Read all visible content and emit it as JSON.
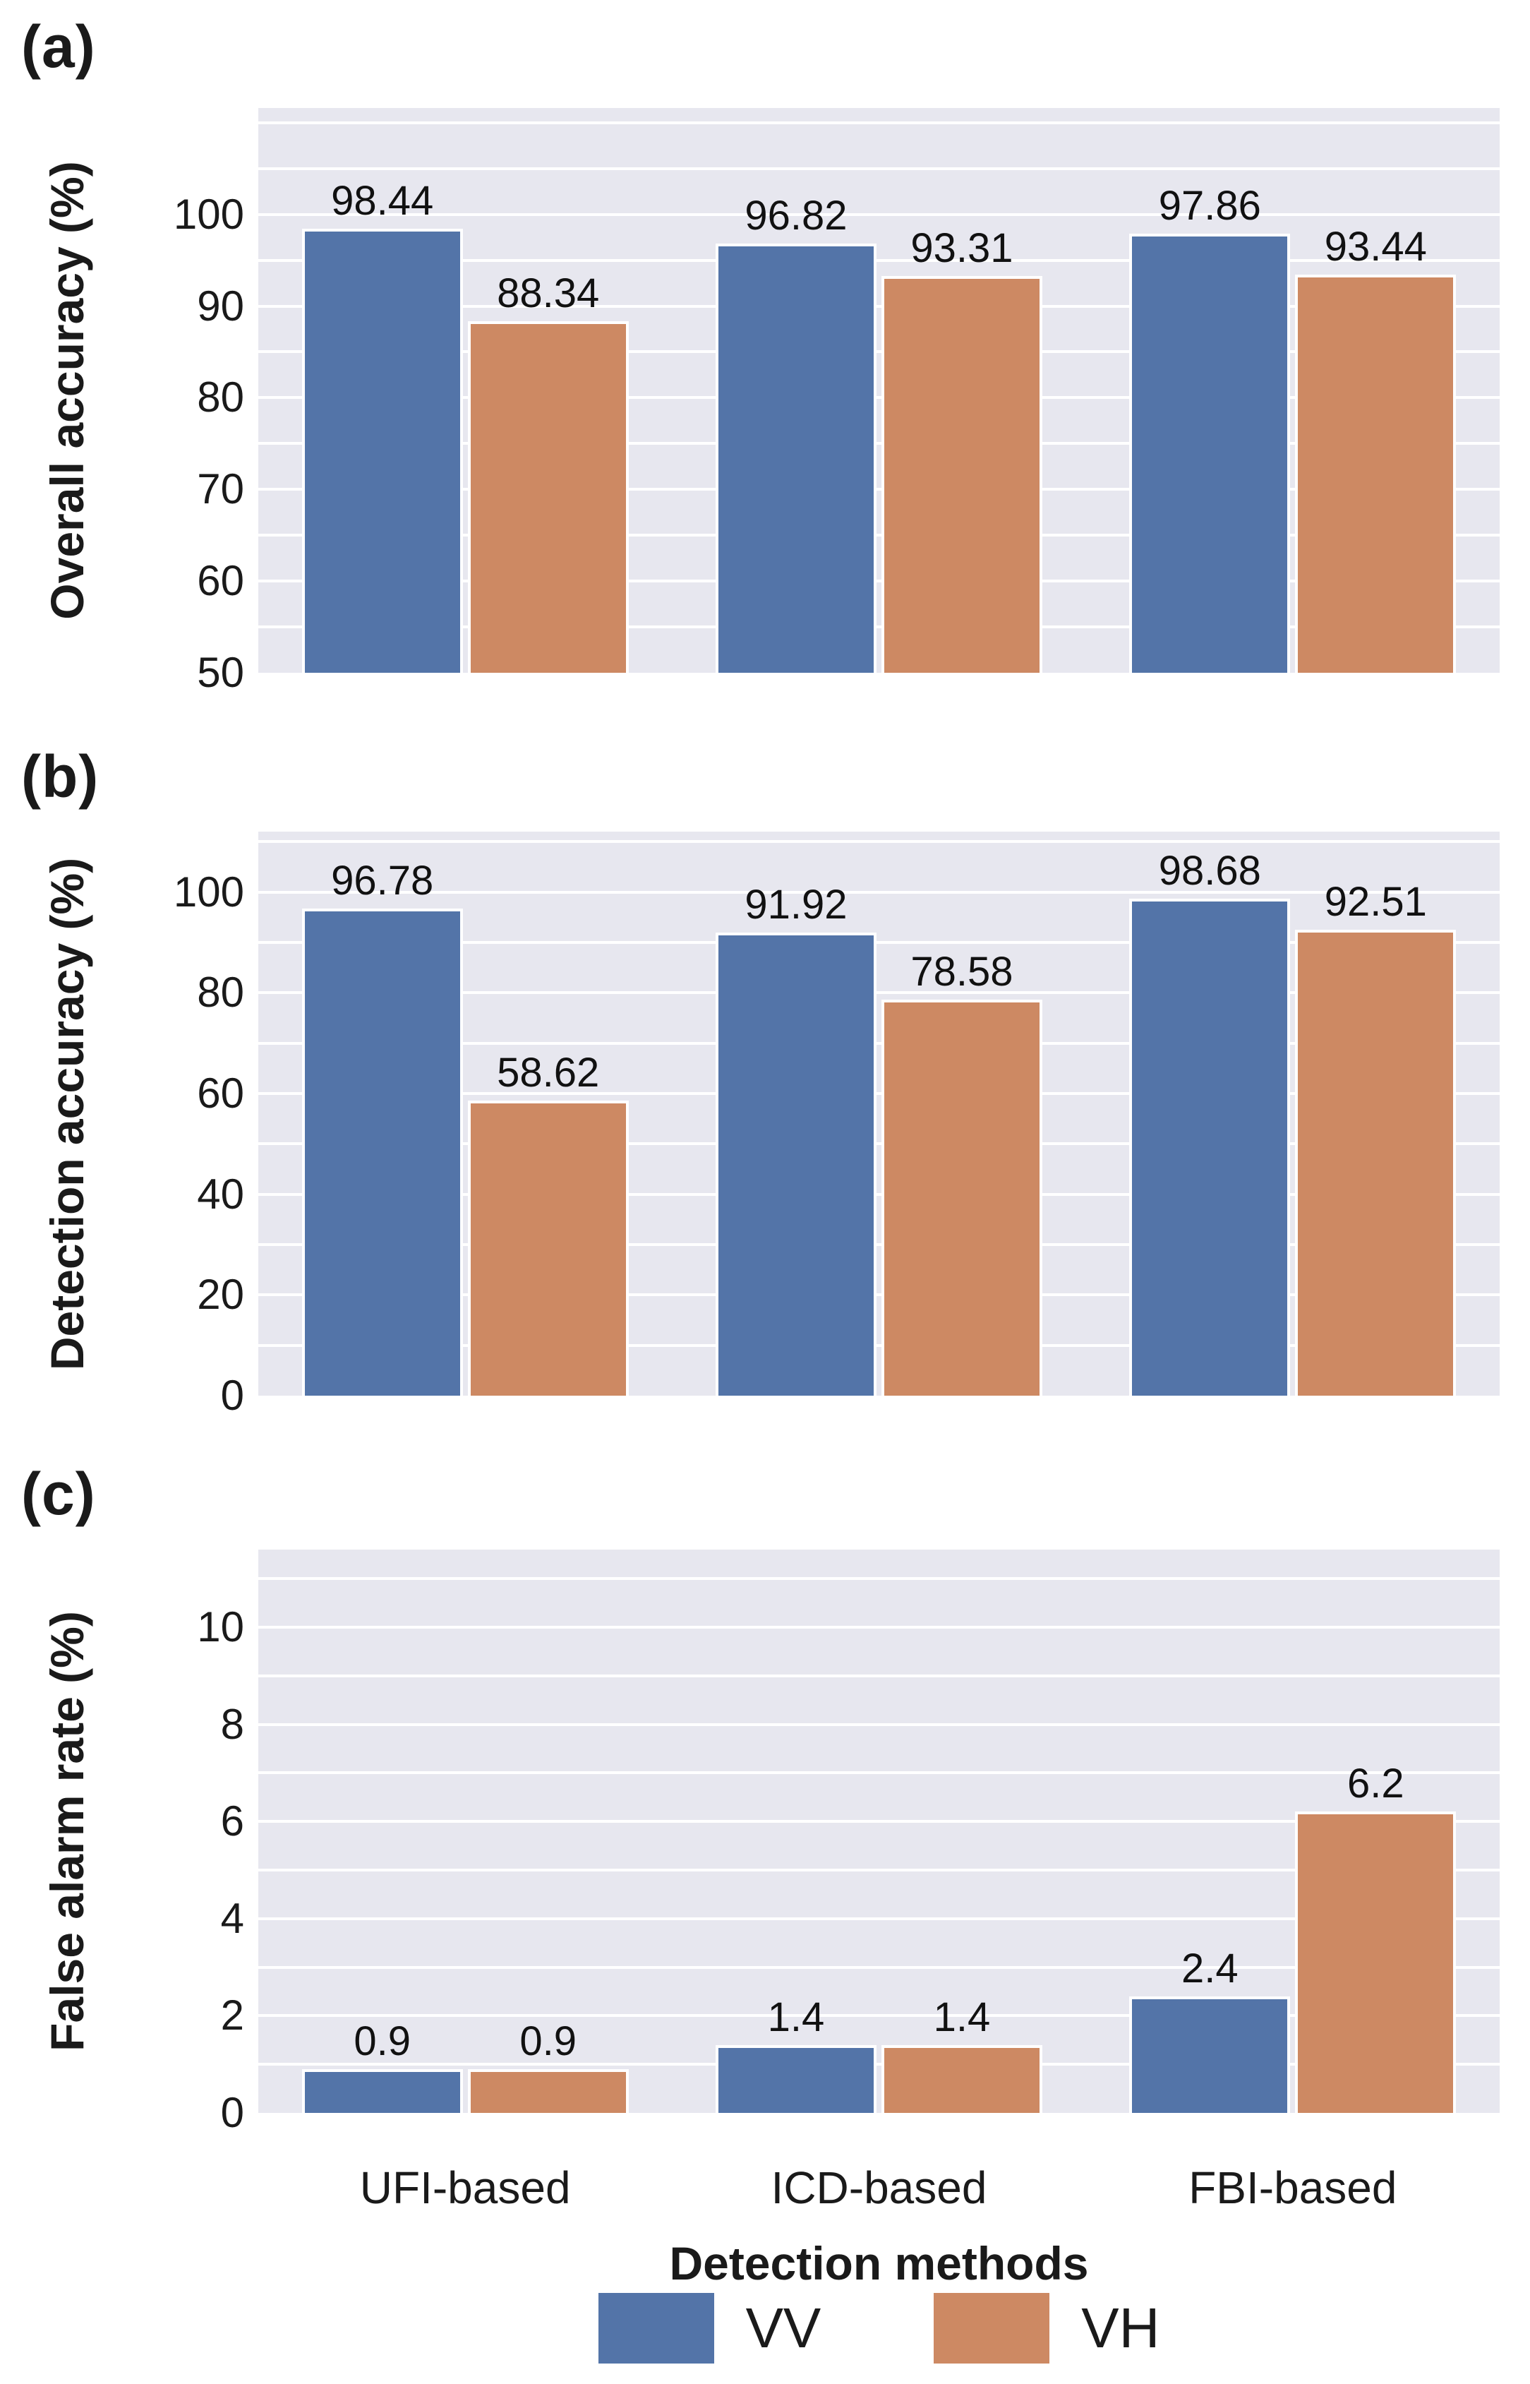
{
  "figure": {
    "xlabel": "Detection methods",
    "categories": [
      "UFI-based",
      "ICD-based",
      "FBI-based"
    ],
    "colors": {
      "vv": "#5374a8",
      "vh": "#cd8963",
      "plot_bg": "#e7e7ef",
      "grid": "#ffffff",
      "text": "#1a1a1a"
    },
    "legend_position": "bottom-center"
  },
  "chart_data": [
    {
      "type": "bar",
      "panel_letter": "(a)",
      "ylabel": "Overall accuracy (%)",
      "xlabel": "",
      "categories": [
        "UFI-based",
        "ICD-based",
        "FBI-based"
      ],
      "series": [
        {
          "name": "VV",
          "values": [
            98.44,
            96.82,
            97.86
          ]
        },
        {
          "name": "VH",
          "values": [
            88.34,
            93.31,
            93.44
          ]
        }
      ],
      "ylim": [
        50,
        111.6
      ],
      "yticks": [
        50,
        60,
        70,
        80,
        90,
        100
      ],
      "grid_step": 5,
      "grid": true,
      "value_labels": true
    },
    {
      "type": "bar",
      "panel_letter": "(b)",
      "ylabel": "Detection accuracy (%)",
      "xlabel": "",
      "categories": [
        "UFI-based",
        "ICD-based",
        "FBI-based"
      ],
      "series": [
        {
          "name": "VV",
          "values": [
            96.78,
            91.92,
            98.68
          ]
        },
        {
          "name": "VH",
          "values": [
            58.62,
            78.58,
            92.51
          ]
        }
      ],
      "ylim": [
        0,
        112
      ],
      "yticks": [
        0,
        20,
        40,
        60,
        80,
        100
      ],
      "grid_step": 10,
      "grid": true,
      "value_labels": true
    },
    {
      "type": "bar",
      "panel_letter": "(c)",
      "ylabel": "False alarm rate (%)",
      "xlabel": "Detection methods",
      "categories": [
        "UFI-based",
        "ICD-based",
        "FBI-based"
      ],
      "series": [
        {
          "name": "VV",
          "values": [
            0.9,
            1.4,
            2.4
          ]
        },
        {
          "name": "VH",
          "values": [
            0.9,
            1.4,
            6.2
          ]
        }
      ],
      "ylim": [
        0,
        11.6
      ],
      "yticks": [
        0,
        2,
        4,
        6,
        8,
        10
      ],
      "grid_step": 1,
      "grid": true,
      "value_labels": true
    }
  ]
}
